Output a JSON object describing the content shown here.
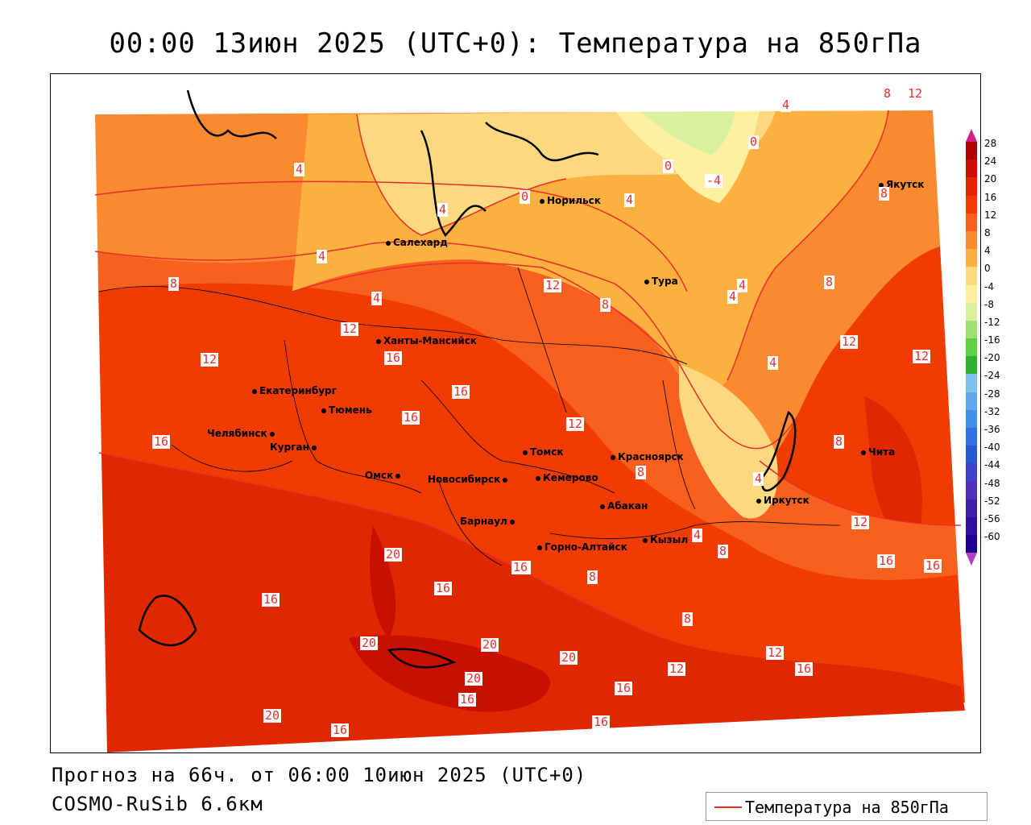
{
  "title": "00:00 13июн 2025 (UTC+0): Температура на 850гПа",
  "footer": {
    "forecast": "Прогноз на 66ч. от 06:00 10июн 2025 (UTC+0)",
    "model": "COSMO-RuSib 6.6км"
  },
  "legend": {
    "label": "Температура на 850гПа",
    "color": "#e8302a"
  },
  "colorbar": {
    "labels": [
      "28",
      "24",
      "20",
      "16",
      "12",
      "8",
      "4",
      "0",
      "-4",
      "-8",
      "-12",
      "-16",
      "-20",
      "-24",
      "-28",
      "-32",
      "-36",
      "-40",
      "-44",
      "-48",
      "-52",
      "-56",
      "-60"
    ],
    "colors": [
      "#b00000",
      "#c81000",
      "#e02800",
      "#f03c00",
      "#f86020",
      "#fa8a30",
      "#fbb040",
      "#fcd880",
      "#fff0a0",
      "#d8f0a0",
      "#a0e070",
      "#60d040",
      "#30b030",
      "#80c0f0",
      "#60a8f0",
      "#4090e8",
      "#3070e0",
      "#2858d0",
      "#4040c8",
      "#5030b8",
      "#4020a8",
      "#3010a0",
      "#200090"
    ]
  },
  "cities": [
    {
      "name": "Якутск"
    },
    {
      "name": "Норильск"
    },
    {
      "name": "Салехард"
    },
    {
      "name": "Тура"
    },
    {
      "name": "Ханты-Мансийск"
    },
    {
      "name": "Екатеринбург"
    },
    {
      "name": "Тюмень"
    },
    {
      "name": "Челябинск"
    },
    {
      "name": "Курган"
    },
    {
      "name": "Омск"
    },
    {
      "name": "Новосибирск"
    },
    {
      "name": "Томск"
    },
    {
      "name": "Кемерово"
    },
    {
      "name": "Красноярск"
    },
    {
      "name": "Барнаул"
    },
    {
      "name": "Абакан"
    },
    {
      "name": "Горно-Алтайск"
    },
    {
      "name": "Кызыл"
    },
    {
      "name": "Иркутск"
    },
    {
      "name": "Чита"
    }
  ],
  "contour_labels": [
    "8",
    "12",
    "4",
    "4",
    "0",
    "0",
    "-4",
    "0",
    "4",
    "4",
    "4",
    "8",
    "8",
    "4",
    "12",
    "4",
    "12",
    "16",
    "16",
    "12",
    "8",
    "8",
    "12",
    "12",
    "4",
    "4",
    "8",
    "12",
    "16",
    "12",
    "16",
    "16",
    "16",
    "20",
    "16",
    "8",
    "4",
    "8",
    "8",
    "8",
    "12",
    "16",
    "20",
    "20",
    "20",
    "20",
    "16",
    "16",
    "12",
    "16",
    "20",
    "16",
    "16",
    "16",
    "16",
    "4"
  ]
}
